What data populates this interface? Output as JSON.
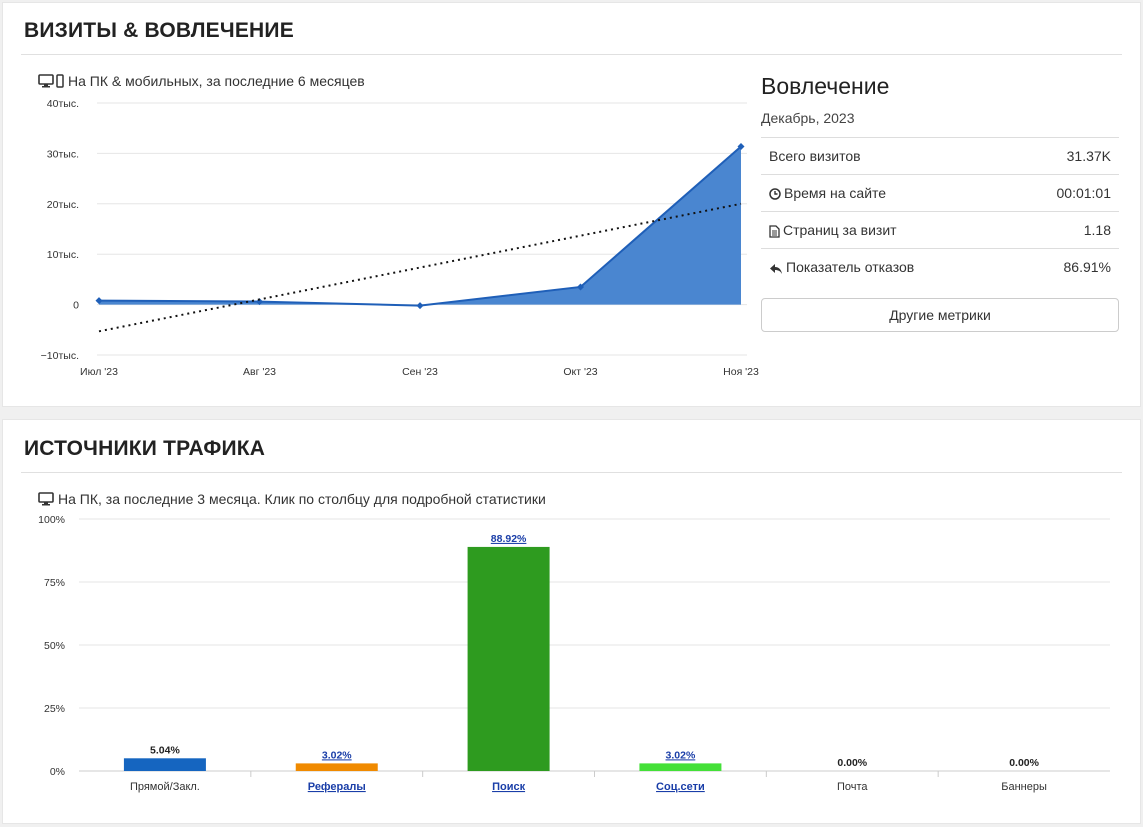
{
  "visits_section": {
    "title": "ВИЗИТЫ & ВОВЛЕЧЕНИЕ",
    "subtitle": "На ПК & мобильных, за последние 6 месяцев"
  },
  "engagement": {
    "title": "Вовлечение",
    "date": "Декабрь, 2023",
    "metrics": [
      {
        "label": "Всего визитов",
        "value": "31.37K",
        "icon": ""
      },
      {
        "label": "Время на сайте",
        "value": "00:01:01",
        "icon": "clock-icon"
      },
      {
        "label": "Страниц за визит",
        "value": "1.18",
        "icon": "page-icon"
      },
      {
        "label": "Показатель отказов",
        "value": "86.91%",
        "icon": "reply-arrow-icon"
      }
    ],
    "more_button": "Другие метрики"
  },
  "traffic_section": {
    "title": "ИСТОЧНИКИ ТРАФИКА",
    "subtitle": "На ПК, за последние 3 месяца. Клик по столбцу для подробной статистики"
  },
  "colors": {
    "area_fill": "#4a86d0",
    "area_line": "#1f5fb8",
    "trend": "#111111",
    "link": "#1a3ea8"
  },
  "chart_data": [
    {
      "type": "area",
      "x": [
        "Июл '23",
        "Авг '23",
        "Сен '23",
        "Окт '23",
        "Ноя '23"
      ],
      "series": [
        {
          "values": [
            800,
            600,
            -200,
            3500,
            31370
          ]
        }
      ],
      "trendline": {
        "start": -5300,
        "end": 20000
      },
      "y_ticks": [
        "40тыс.",
        "30тыс.",
        "20тыс.",
        "10тыс.",
        "0",
        "−10тыс."
      ],
      "ylim": [
        -10000,
        40000
      ],
      "grid": true
    },
    {
      "type": "bar",
      "categories": [
        "Прямой/Закл.",
        "Рефералы",
        "Поиск",
        "Соц.сети",
        "Почта",
        "Баннеры"
      ],
      "values": [
        5.04,
        3.02,
        88.92,
        3.02,
        0.0,
        0.0
      ],
      "value_labels": [
        "5.04%",
        "3.02%",
        "88.92%",
        "3.02%",
        "0.00%",
        "0.00%"
      ],
      "colors": [
        "#1565c0",
        "#f08a00",
        "#2e9b1f",
        "#44e038",
        "#cccccc",
        "#cccccc"
      ],
      "linked": [
        false,
        true,
        true,
        true,
        false,
        false
      ],
      "y_ticks": [
        "100%",
        "75%",
        "50%",
        "25%",
        "0%"
      ],
      "ylim": [
        0,
        100
      ],
      "grid": true
    }
  ]
}
